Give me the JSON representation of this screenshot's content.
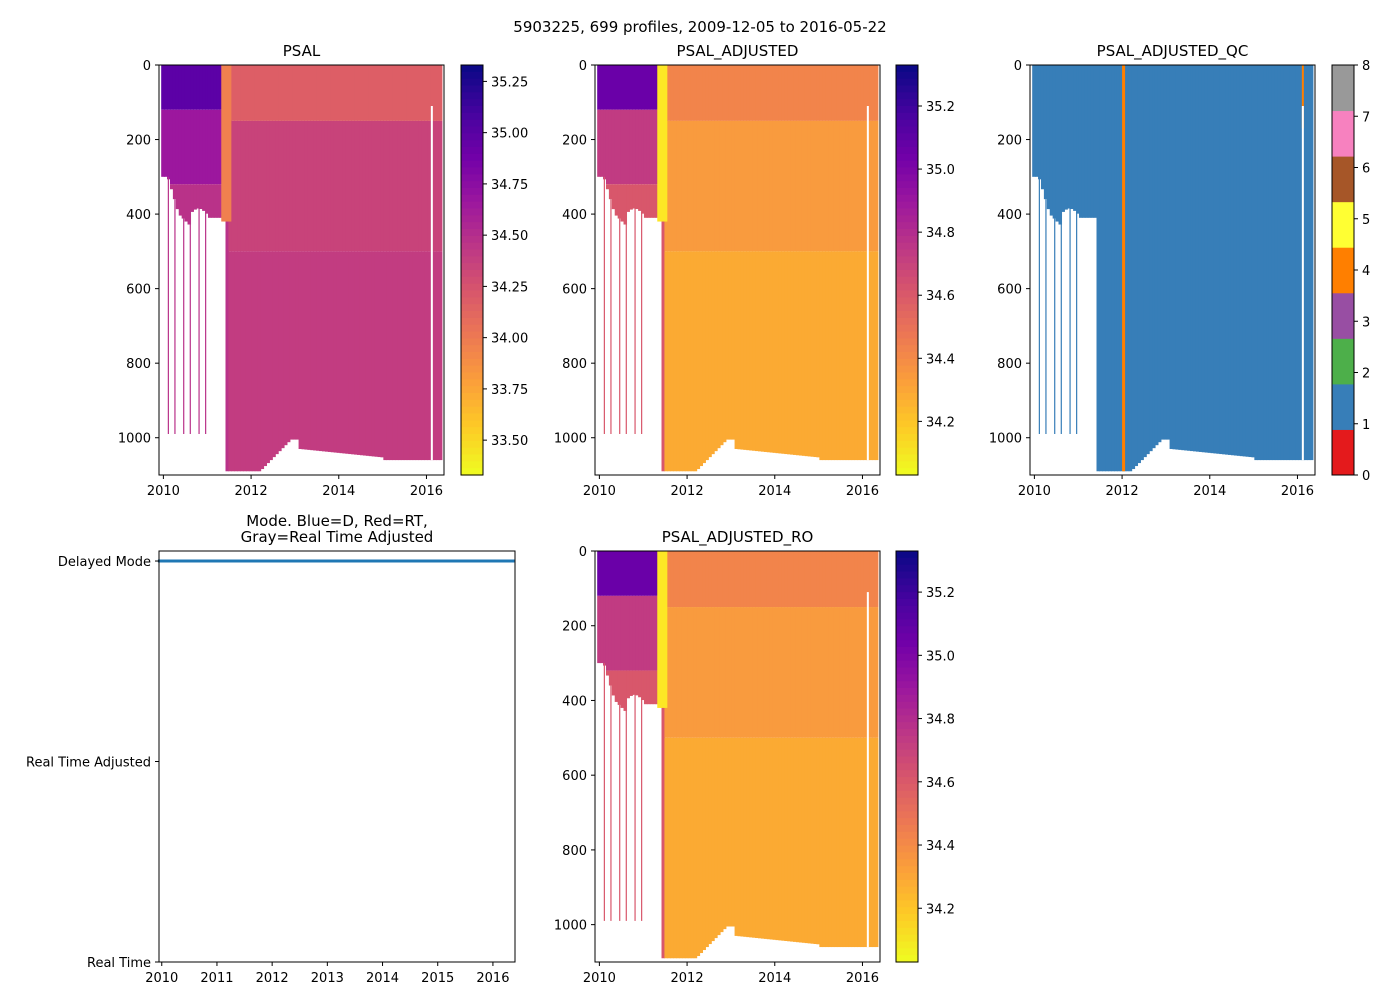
{
  "figure": {
    "suptitle": "5903225, 699 profiles, 2009-12-05 to 2016-05-22"
  },
  "chart_data": [
    {
      "id": "psal",
      "type": "heatmap",
      "title": "PSAL",
      "xlabel": "",
      "ylabel": "",
      "xlim": [
        2009.9,
        2016.4
      ],
      "ylim": [
        1100,
        0
      ],
      "xticks": [
        2010,
        2012,
        2014,
        2016
      ],
      "xtick_labels": [
        "2010",
        "2012",
        "2014",
        "2016"
      ],
      "yticks": [
        0,
        200,
        400,
        600,
        800,
        1000
      ],
      "ytick_labels": [
        "0",
        "200",
        "400",
        "600",
        "800",
        "1000"
      ],
      "colorbar": {
        "colormap": "plasma_r",
        "range": [
          33.33,
          35.33
        ],
        "ticks": [
          33.5,
          33.75,
          34.0,
          34.25,
          34.5,
          34.75,
          35.0,
          35.25
        ],
        "tick_labels": [
          "33.50",
          "33.75",
          "34.00",
          "34.25",
          "34.50",
          "34.75",
          "35.00",
          "35.25"
        ]
      },
      "colors": {
        "shallow_early": "#5c01a6",
        "mid_early": "#9c179e",
        "early_deep": "#b93289",
        "late_shallow": "#dd5e66",
        "late_mid": "#c8437a",
        "late_deep": "#c23c81",
        "anomaly_band": "#f0804f"
      }
    },
    {
      "id": "psal-adjusted",
      "type": "heatmap",
      "title": "PSAL_ADJUSTED",
      "xlabel": "",
      "ylabel": "",
      "xlim": [
        2009.9,
        2016.4
      ],
      "ylim": [
        1100,
        0
      ],
      "xticks": [
        2010,
        2012,
        2014,
        2016
      ],
      "xtick_labels": [
        "2010",
        "2012",
        "2014",
        "2016"
      ],
      "yticks": [
        0,
        200,
        400,
        600,
        800,
        1000
      ],
      "ytick_labels": [
        "0",
        "200",
        "400",
        "600",
        "800",
        "1000"
      ],
      "colorbar": {
        "colormap": "plasma_r",
        "range": [
          34.03,
          35.33
        ],
        "ticks": [
          34.2,
          34.4,
          34.6,
          34.8,
          35.0,
          35.2
        ],
        "tick_labels": [
          "34.2",
          "34.4",
          "34.6",
          "34.8",
          "35.0",
          "35.2"
        ]
      },
      "colors": {
        "shallow_early": "#6a00a8",
        "mid_early": "#c13b82",
        "early_deep": "#d8576b",
        "late_shallow": "#f2844b",
        "late_mid": "#f99b3e",
        "late_deep": "#fbaa33",
        "anomaly_band": "#fde725"
      }
    },
    {
      "id": "psal-adjusted-qc",
      "type": "heatmap",
      "title": "PSAL_ADJUSTED_QC",
      "xlabel": "",
      "ylabel": "",
      "xlim": [
        2009.9,
        2016.4
      ],
      "ylim": [
        1100,
        0
      ],
      "xticks": [
        2010,
        2012,
        2014,
        2016
      ],
      "xtick_labels": [
        "2010",
        "2012",
        "2014",
        "2016"
      ],
      "yticks": [
        0,
        200,
        400,
        600,
        800,
        1000
      ],
      "ytick_labels": [
        "0",
        "200",
        "400",
        "600",
        "800",
        "1000"
      ],
      "dominant_flag": 1,
      "flag_4_dates": [
        2012.0,
        2016.1
      ],
      "colorbar": {
        "colormap": "Set1 (discrete)",
        "range": [
          0,
          8
        ],
        "ticks": [
          0,
          1,
          2,
          3,
          4,
          5,
          6,
          7,
          8
        ],
        "tick_labels": [
          "0",
          "1",
          "2",
          "3",
          "4",
          "5",
          "6",
          "7",
          "8"
        ],
        "flag_colors": [
          "#e41a1c",
          "#377eb8",
          "#4daf4a",
          "#984ea3",
          "#ff7f00",
          "#ffff33",
          "#a65628",
          "#f781bf",
          "#999999"
        ]
      },
      "colors": {
        "flag_1": "#377eb8",
        "flag_4": "#ff7f00"
      }
    },
    {
      "id": "mode",
      "type": "line",
      "title_lines": [
        "Mode. Blue=D, Red=RT,",
        "Gray=Real Time Adjusted"
      ],
      "xlabel": "",
      "ylabel": "",
      "xlim": [
        2009.95,
        2016.4
      ],
      "xticks": [
        2010,
        2011,
        2012,
        2013,
        2014,
        2015,
        2016
      ],
      "xtick_labels": [
        "2010",
        "2011",
        "2012",
        "2013",
        "2014",
        "2015",
        "2016"
      ],
      "yticks": [
        0,
        1,
        2
      ],
      "ytick_labels": [
        "Real Time",
        "Real Time Adjusted",
        "Delayed Mode"
      ],
      "ylim": [
        0,
        2.05
      ],
      "series": [
        {
          "name": "Delayed Mode",
          "x": [
            2009.93,
            2016.39
          ],
          "values": [
            2,
            2
          ],
          "color": "#1f77b4"
        }
      ]
    },
    {
      "id": "psal-adjusted-ro",
      "type": "heatmap",
      "title": "PSAL_ADJUSTED_RO",
      "xlabel": "",
      "ylabel": "",
      "xlim": [
        2009.9,
        2016.4
      ],
      "ylim": [
        1100,
        0
      ],
      "xticks": [
        2010,
        2012,
        2014,
        2016
      ],
      "xtick_labels": [
        "2010",
        "2012",
        "2014",
        "2016"
      ],
      "yticks": [
        0,
        200,
        400,
        600,
        800,
        1000
      ],
      "ytick_labels": [
        "0",
        "200",
        "400",
        "600",
        "800",
        "1000"
      ],
      "colorbar": {
        "colormap": "plasma_r",
        "range": [
          34.03,
          35.33
        ],
        "ticks": [
          34.2,
          34.4,
          34.6,
          34.8,
          35.0,
          35.2
        ],
        "tick_labels": [
          "34.2",
          "34.4",
          "34.6",
          "34.8",
          "35.0",
          "35.2"
        ]
      },
      "colors": {
        "shallow_early": "#6a00a8",
        "mid_early": "#c13b82",
        "early_deep": "#d8576b",
        "late_shallow": "#f2844b",
        "late_mid": "#f99b3e",
        "late_deep": "#fbaa33",
        "anomaly_band": "#fde725"
      }
    }
  ]
}
